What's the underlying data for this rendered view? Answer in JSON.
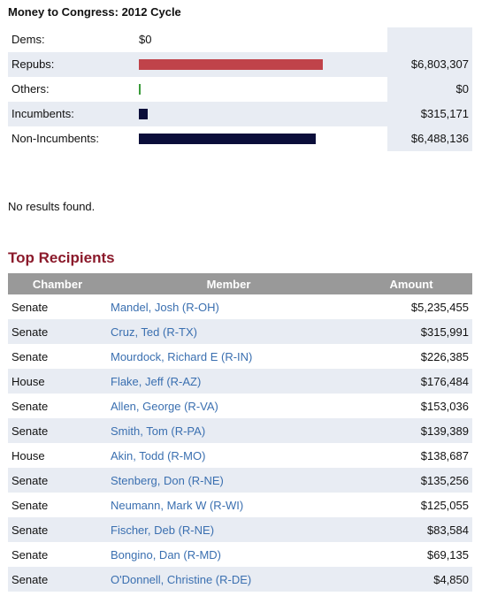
{
  "section_title": "Money to Congress: 2012 Cycle",
  "summary_rows": [
    {
      "label": "Dems:",
      "amount": "$0",
      "bar_fraction": 0.0,
      "bar_color": "#c0434a"
    },
    {
      "label": "Repubs:",
      "amount": "$6,803,307",
      "bar_fraction": 0.74,
      "bar_color": "#c0434a"
    },
    {
      "label": "Others:",
      "amount": "$0",
      "bar_fraction": 0.0,
      "bar_color": "#3a9b3a"
    },
    {
      "label": "Incumbents:",
      "amount": "$315,171",
      "bar_fraction": 0.034,
      "bar_color": "#0b0e3a"
    },
    {
      "label": "Non-Incumbents:",
      "amount": "$6,488,136",
      "bar_fraction": 0.71,
      "bar_color": "#0b0e3a"
    }
  ],
  "no_results": "No results found.",
  "top_recipients": {
    "title": "Top Recipients",
    "headers": {
      "chamber": "Chamber",
      "member": "Member",
      "amount": "Amount"
    },
    "rows": [
      {
        "chamber": "Senate",
        "member": "Mandel, Josh (R-OH)",
        "amount": "$5,235,455"
      },
      {
        "chamber": "Senate",
        "member": "Cruz, Ted (R-TX)",
        "amount": "$315,991"
      },
      {
        "chamber": "Senate",
        "member": "Mourdock, Richard E (R-IN)",
        "amount": "$226,385"
      },
      {
        "chamber": "House",
        "member": "Flake, Jeff (R-AZ)",
        "amount": "$176,484"
      },
      {
        "chamber": "Senate",
        "member": "Allen, George (R-VA)",
        "amount": "$153,036"
      },
      {
        "chamber": "Senate",
        "member": "Smith, Tom (R-PA)",
        "amount": "$139,389"
      },
      {
        "chamber": "House",
        "member": "Akin, Todd (R-MO)",
        "amount": "$138,687"
      },
      {
        "chamber": "Senate",
        "member": "Stenberg, Don (R-NE)",
        "amount": "$135,256"
      },
      {
        "chamber": "Senate",
        "member": "Neumann, Mark W (R-WI)",
        "amount": "$125,055"
      },
      {
        "chamber": "Senate",
        "member": "Fischer, Deb (R-NE)",
        "amount": "$83,584"
      },
      {
        "chamber": "Senate",
        "member": "Bongino, Dan (R-MD)",
        "amount": "$69,135"
      },
      {
        "chamber": "Senate",
        "member": "O'Donnell, Christine (R-DE)",
        "amount": "$4,850"
      }
    ]
  }
}
